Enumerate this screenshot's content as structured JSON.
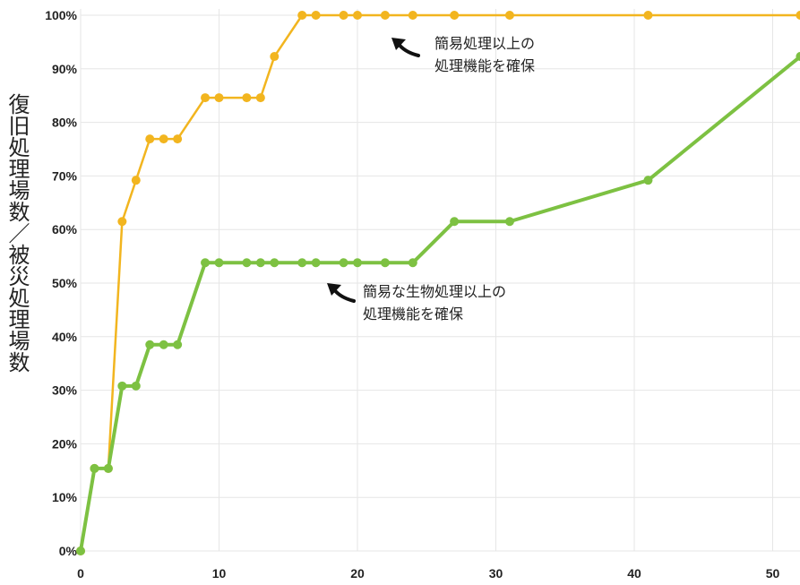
{
  "chart_data": {
    "type": "line",
    "title": "",
    "xlabel": "",
    "ylabel": "復旧処理場数／被災処理場数",
    "xlim": [
      0,
      52
    ],
    "ylim": [
      0,
      100
    ],
    "x_ticks": [
      0,
      10,
      20,
      30,
      40,
      50
    ],
    "y_ticks": [
      0,
      10,
      20,
      30,
      40,
      50,
      60,
      70,
      80,
      90,
      100
    ],
    "y_tick_labels": [
      "0%",
      "10%",
      "20%",
      "30%",
      "40%",
      "50%",
      "60%",
      "70%",
      "80%",
      "90%",
      "100%"
    ],
    "grid": true,
    "series": [
      {
        "color": "#f2b51f",
        "annotation": [
          "簡易処理以上の",
          "処理機能を確保"
        ],
        "x": [
          0,
          1,
          2,
          3,
          4,
          5,
          6,
          7,
          9,
          10,
          12,
          13,
          14,
          16,
          17,
          19,
          20,
          22,
          24,
          27,
          31,
          41,
          52
        ],
        "y": [
          0,
          15.4,
          15.4,
          61.5,
          69.2,
          76.9,
          76.9,
          76.9,
          84.6,
          84.6,
          84.6,
          84.6,
          92.3,
          100,
          100,
          100,
          100,
          100,
          100,
          100,
          100,
          100,
          100
        ]
      },
      {
        "color": "#7dc142",
        "annotation": [
          "簡易な生物処理以上の",
          "処理機能を確保"
        ],
        "x": [
          0,
          1,
          2,
          3,
          4,
          5,
          6,
          7,
          9,
          10,
          12,
          13,
          14,
          16,
          17,
          19,
          20,
          22,
          24,
          27,
          31,
          41,
          52
        ],
        "y": [
          0,
          15.4,
          15.4,
          30.8,
          30.8,
          38.5,
          38.5,
          38.5,
          53.8,
          53.8,
          53.8,
          53.8,
          53.8,
          53.8,
          53.8,
          53.8,
          53.8,
          53.8,
          53.8,
          61.5,
          61.5,
          69.2,
          92.3
        ]
      }
    ]
  }
}
